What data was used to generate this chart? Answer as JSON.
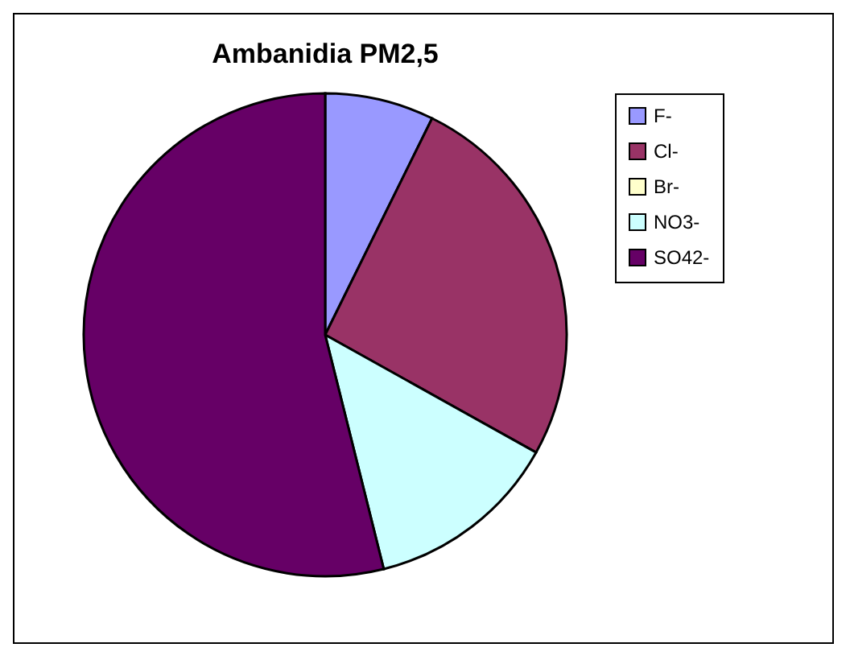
{
  "chart_data": {
    "type": "pie",
    "title": "Ambanidia PM2,5",
    "categories": [
      "F-",
      "Cl-",
      "Br-",
      "NO3-",
      "SO42-"
    ],
    "values": [
      7.3,
      25.8,
      0,
      13,
      53.9
    ],
    "colors": [
      "#9999ff",
      "#993366",
      "#ffffcc",
      "#ccffff",
      "#660066"
    ],
    "legend": "right"
  }
}
